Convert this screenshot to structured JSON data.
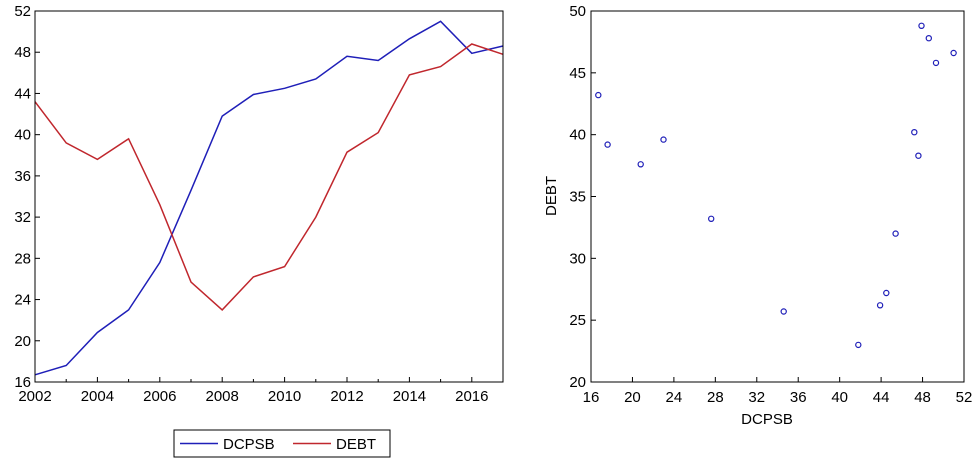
{
  "chart_data": [
    {
      "type": "line",
      "x": [
        2002,
        2003,
        2004,
        2005,
        2006,
        2007,
        2008,
        2009,
        2010,
        2011,
        2012,
        2013,
        2014,
        2015,
        2016,
        2017
      ],
      "series": [
        {
          "name": "DCPSB",
          "color": "#1f1fb8",
          "values": [
            16.7,
            17.6,
            20.8,
            23.0,
            27.6,
            34.6,
            41.8,
            43.9,
            44.5,
            45.4,
            47.6,
            47.2,
            49.3,
            51.0,
            47.9,
            48.6
          ]
        },
        {
          "name": "DEBT",
          "color": "#c0272d",
          "values": [
            43.2,
            39.2,
            37.6,
            39.6,
            33.2,
            25.7,
            23.0,
            26.2,
            27.2,
            32.0,
            38.3,
            40.2,
            45.8,
            46.6,
            48.8,
            47.8
          ]
        }
      ],
      "xlim": [
        2002,
        2017
      ],
      "ylim": [
        16,
        52
      ],
      "xticks": [
        "2002",
        "2004",
        "2006",
        "2008",
        "2010",
        "2012",
        "2014",
        "2016"
      ],
      "yticks": [
        "16",
        "20",
        "24",
        "28",
        "32",
        "36",
        "40",
        "44",
        "48",
        "52"
      ],
      "grid": false,
      "legend": "bottom-center"
    },
    {
      "type": "scatter",
      "xlabel": "DCPSB",
      "ylabel": "DEBT",
      "points": [
        [
          16.7,
          43.2
        ],
        [
          17.6,
          39.2
        ],
        [
          20.8,
          37.6
        ],
        [
          23.0,
          39.6
        ],
        [
          27.6,
          33.2
        ],
        [
          34.6,
          25.7
        ],
        [
          41.8,
          23.0
        ],
        [
          43.9,
          26.2
        ],
        [
          44.5,
          27.2
        ],
        [
          45.4,
          32.0
        ],
        [
          47.6,
          38.3
        ],
        [
          47.2,
          40.2
        ],
        [
          49.3,
          45.8
        ],
        [
          51.0,
          46.6
        ],
        [
          47.9,
          48.8
        ],
        [
          48.6,
          47.8
        ]
      ],
      "marker_color": "#1f1fb8",
      "xlim": [
        16,
        52
      ],
      "ylim": [
        20,
        50
      ],
      "xticks": [
        "16",
        "20",
        "24",
        "28",
        "32",
        "36",
        "40",
        "44",
        "48",
        "52"
      ],
      "yticks": [
        "20",
        "25",
        "30",
        "35",
        "40",
        "45",
        "50"
      ],
      "grid": false
    }
  ]
}
